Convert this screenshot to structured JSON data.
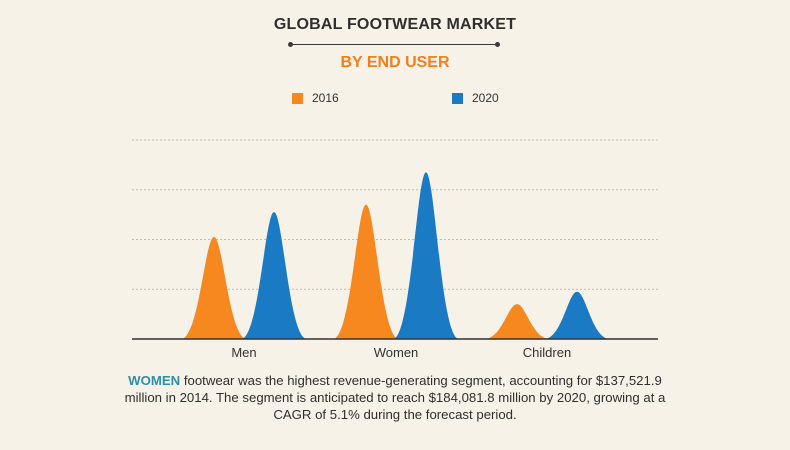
{
  "title": "GLOBAL FOOTWEAR MARKET",
  "subtitle": "BY END USER",
  "colors": {
    "accent_orange": "#f07f1c",
    "series_2016": "#f7871f",
    "series_2020": "#1a7bc4",
    "caption_highlight": "#2d8fa9"
  },
  "legend": [
    {
      "label": "2016"
    },
    {
      "label": "2020"
    }
  ],
  "chart_data": {
    "type": "area",
    "title": "GLOBAL FOOTWEAR MARKET",
    "subtitle": "BY END USER",
    "categories": [
      "Men",
      "Women",
      "Children"
    ],
    "series": [
      {
        "name": "2016",
        "values": [
          2.05,
          2.7,
          0.7
        ]
      },
      {
        "name": "2020",
        "values": [
          2.55,
          3.35,
          0.95
        ]
      }
    ],
    "ylim": [
      0,
      4
    ],
    "grid": true,
    "legend_position": "top-center"
  },
  "caption": {
    "highlight": "WOMEN",
    "text": " footwear was the highest revenue-generating segment, accounting for $137,521.9 million in 2014. The segment is anticipated to reach $184,081.8 million by 2020, growing at a CAGR of 5.1% during the forecast period."
  }
}
